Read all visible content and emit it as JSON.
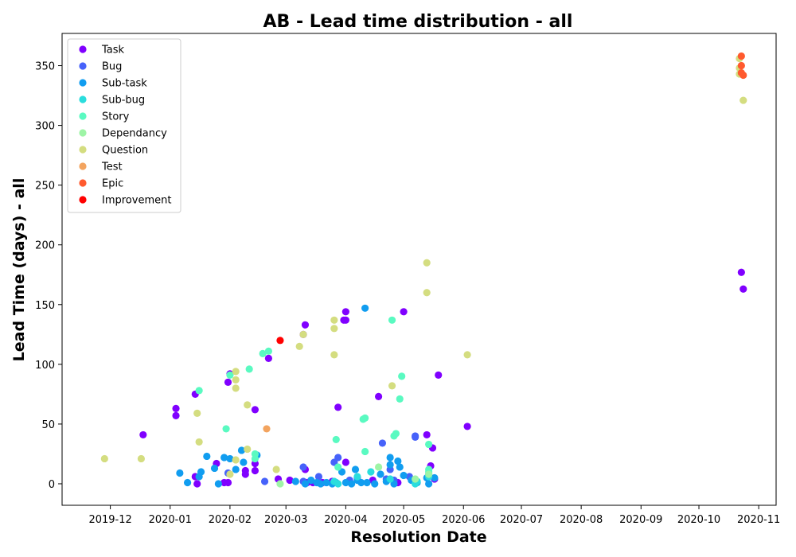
{
  "chart_data": {
    "type": "scatter",
    "title": "AB - Lead time distribution - all",
    "xlabel": "Resolution Date",
    "ylabel": "Lead Time (days) - all",
    "x_range": [
      "2019-11-06",
      "2020-11-10"
    ],
    "ylim": [
      -18,
      377
    ],
    "x_ticks": [
      "2019-12",
      "2020-01",
      "2020-02",
      "2020-03",
      "2020-04",
      "2020-05",
      "2020-06",
      "2020-07",
      "2020-08",
      "2020-09",
      "2020-10",
      "2020-11"
    ],
    "x_tick_dates": [
      "2019-12-01",
      "2020-01-01",
      "2020-02-01",
      "2020-03-01",
      "2020-04-01",
      "2020-05-01",
      "2020-06-01",
      "2020-07-01",
      "2020-08-01",
      "2020-09-01",
      "2020-10-01",
      "2020-11-01"
    ],
    "y_ticks": [
      0,
      50,
      100,
      150,
      200,
      250,
      300,
      350
    ],
    "grid": false,
    "legend_position": "top-left",
    "series": [
      {
        "name": "Task",
        "color": "#8000ff",
        "points": [
          [
            "2019-12-18",
            41
          ],
          [
            "2020-01-04",
            63
          ],
          [
            "2020-01-04",
            57
          ],
          [
            "2020-01-14",
            75
          ],
          [
            "2020-01-14",
            6
          ],
          [
            "2020-01-15",
            0
          ],
          [
            "2020-01-25",
            17
          ],
          [
            "2020-01-29",
            1
          ],
          [
            "2020-01-31",
            1
          ],
          [
            "2020-01-31",
            85
          ],
          [
            "2020-02-01",
            92
          ],
          [
            "2020-02-09",
            8
          ],
          [
            "2020-02-09",
            11
          ],
          [
            "2020-02-14",
            62
          ],
          [
            "2020-02-14",
            17
          ],
          [
            "2020-02-14",
            11
          ],
          [
            "2020-02-21",
            105
          ],
          [
            "2020-02-26",
            4
          ],
          [
            "2020-03-03",
            3
          ],
          [
            "2020-03-10",
            125
          ],
          [
            "2020-03-11",
            133
          ],
          [
            "2020-03-11",
            12
          ],
          [
            "2020-03-12",
            1
          ],
          [
            "2020-03-15",
            1
          ],
          [
            "2020-03-20",
            1
          ],
          [
            "2020-03-25",
            2
          ],
          [
            "2020-03-28",
            64
          ],
          [
            "2020-03-31",
            137
          ],
          [
            "2020-04-01",
            144
          ],
          [
            "2020-04-01",
            137
          ],
          [
            "2020-04-01",
            18
          ],
          [
            "2020-04-07",
            5
          ],
          [
            "2020-04-15",
            3
          ],
          [
            "2020-04-18",
            73
          ],
          [
            "2020-04-28",
            1
          ],
          [
            "2020-05-01",
            144
          ],
          [
            "2020-05-07",
            3
          ],
          [
            "2020-05-13",
            41
          ],
          [
            "2020-05-15",
            15
          ],
          [
            "2020-05-16",
            30
          ],
          [
            "2020-05-17",
            4
          ],
          [
            "2020-05-19",
            91
          ],
          [
            "2020-06-03",
            48
          ],
          [
            "2020-10-23",
            177
          ],
          [
            "2020-10-24",
            163
          ]
        ]
      },
      {
        "name": "Bug",
        "color": "#4662fa",
        "points": [
          [
            "2020-01-31",
            9
          ],
          [
            "2020-02-19",
            2
          ],
          [
            "2020-03-10",
            14
          ],
          [
            "2020-03-10",
            2
          ],
          [
            "2020-03-18",
            6
          ],
          [
            "2020-03-26",
            18
          ],
          [
            "2020-03-28",
            22
          ],
          [
            "2020-04-03",
            3
          ],
          [
            "2020-04-20",
            34
          ],
          [
            "2020-04-22",
            4
          ],
          [
            "2020-04-24",
            12
          ],
          [
            "2020-04-26",
            3
          ],
          [
            "2020-05-04",
            6
          ],
          [
            "2020-05-07",
            40
          ],
          [
            "2020-05-07",
            39
          ],
          [
            "2020-05-14",
            8
          ]
        ]
      },
      {
        "name": "Sub-task",
        "color": "#119df0",
        "points": [
          [
            "2020-01-06",
            9
          ],
          [
            "2020-01-10",
            1
          ],
          [
            "2020-01-16",
            6
          ],
          [
            "2020-01-17",
            10
          ],
          [
            "2020-01-20",
            23
          ],
          [
            "2020-01-24",
            13
          ],
          [
            "2020-01-26",
            0
          ],
          [
            "2020-01-29",
            22
          ],
          [
            "2020-02-01",
            21
          ],
          [
            "2020-02-04",
            12
          ],
          [
            "2020-02-07",
            28
          ],
          [
            "2020-02-08",
            18
          ],
          [
            "2020-02-15",
            24
          ],
          [
            "2020-03-06",
            2
          ],
          [
            "2020-03-11",
            0
          ],
          [
            "2020-03-14",
            3
          ],
          [
            "2020-03-17",
            1
          ],
          [
            "2020-03-19",
            0
          ],
          [
            "2020-03-22",
            1
          ],
          [
            "2020-03-25",
            0
          ],
          [
            "2020-03-27",
            1
          ],
          [
            "2020-03-30",
            10
          ],
          [
            "2020-04-01",
            1
          ],
          [
            "2020-04-04",
            0
          ],
          [
            "2020-04-06",
            12
          ],
          [
            "2020-04-07",
            3
          ],
          [
            "2020-04-09",
            1
          ],
          [
            "2020-04-11",
            147
          ],
          [
            "2020-04-12",
            1
          ],
          [
            "2020-04-16",
            0
          ],
          [
            "2020-04-19",
            8
          ],
          [
            "2020-04-22",
            2
          ],
          [
            "2020-04-24",
            22
          ],
          [
            "2020-04-24",
            16
          ],
          [
            "2020-04-26",
            0
          ],
          [
            "2020-04-28",
            19
          ],
          [
            "2020-04-29",
            14
          ],
          [
            "2020-05-01",
            7
          ],
          [
            "2020-05-05",
            3
          ],
          [
            "2020-05-08",
            1
          ],
          [
            "2020-05-13",
            5
          ],
          [
            "2020-05-14",
            0
          ],
          [
            "2020-05-17",
            5
          ]
        ]
      },
      {
        "name": "Sub-bug",
        "color": "#2adddd",
        "points": [
          [
            "2020-03-26",
            2
          ],
          [
            "2020-03-28",
            0
          ],
          [
            "2020-04-07",
            6
          ],
          [
            "2020-04-14",
            10
          ],
          [
            "2020-04-24",
            4
          ],
          [
            "2020-05-07",
            0
          ],
          [
            "2020-05-08",
            2
          ],
          [
            "2020-05-14",
            6
          ]
        ]
      },
      {
        "name": "Story",
        "color": "#5afac1",
        "points": [
          [
            "2020-01-16",
            78
          ],
          [
            "2020-01-30",
            46
          ],
          [
            "2020-02-01",
            91
          ],
          [
            "2020-02-11",
            96
          ],
          [
            "2020-02-14",
            25
          ],
          [
            "2020-02-14",
            21
          ],
          [
            "2020-02-18",
            109
          ],
          [
            "2020-02-21",
            111
          ],
          [
            "2020-03-27",
            37
          ],
          [
            "2020-03-28",
            14
          ],
          [
            "2020-04-10",
            54
          ],
          [
            "2020-04-11",
            55
          ],
          [
            "2020-04-11",
            27
          ],
          [
            "2020-04-25",
            137
          ],
          [
            "2020-04-26",
            40
          ],
          [
            "2020-04-27",
            42
          ],
          [
            "2020-04-29",
            71
          ],
          [
            "2020-04-30",
            90
          ],
          [
            "2020-05-14",
            33
          ],
          [
            "2020-05-14",
            12
          ],
          [
            "2020-05-14",
            10
          ]
        ]
      },
      {
        "name": "Dependancy",
        "color": "#9ef4a6",
        "points": [
          [
            "2020-02-27",
            0
          ],
          [
            "2020-04-18",
            14
          ],
          [
            "2020-05-14",
            8
          ],
          [
            "2020-05-07",
            4
          ]
        ]
      },
      {
        "name": "Question",
        "color": "#d4dd80",
        "points": [
          [
            "2019-11-28",
            21
          ],
          [
            "2019-12-17",
            21
          ],
          [
            "2020-01-15",
            59
          ],
          [
            "2020-01-16",
            35
          ],
          [
            "2020-02-01",
            8
          ],
          [
            "2020-02-04",
            94
          ],
          [
            "2020-02-04",
            87
          ],
          [
            "2020-02-04",
            80
          ],
          [
            "2020-02-04",
            20
          ],
          [
            "2020-02-10",
            66
          ],
          [
            "2020-02-10",
            29
          ],
          [
            "2020-02-25",
            12
          ],
          [
            "2020-03-08",
            115
          ],
          [
            "2020-03-10",
            125
          ],
          [
            "2020-03-26",
            137
          ],
          [
            "2020-03-26",
            130
          ],
          [
            "2020-03-26",
            108
          ],
          [
            "2020-04-25",
            82
          ],
          [
            "2020-05-13",
            185
          ],
          [
            "2020-05-13",
            160
          ],
          [
            "2020-06-03",
            108
          ],
          [
            "2020-10-22",
            356
          ],
          [
            "2020-10-22",
            348
          ],
          [
            "2020-10-22",
            343
          ],
          [
            "2020-10-24",
            321
          ]
        ]
      },
      {
        "name": "Test",
        "color": "#f3a45f",
        "points": [
          [
            "2020-02-20",
            46
          ]
        ]
      },
      {
        "name": "Epic",
        "color": "#ff5a2e",
        "points": [
          [
            "2020-10-23",
            358
          ],
          [
            "2020-10-23",
            350
          ],
          [
            "2020-10-23",
            344
          ],
          [
            "2020-10-24",
            342
          ]
        ]
      },
      {
        "name": "Improvement",
        "color": "#ff0000",
        "points": [
          [
            "2020-02-27",
            120
          ]
        ]
      }
    ]
  }
}
